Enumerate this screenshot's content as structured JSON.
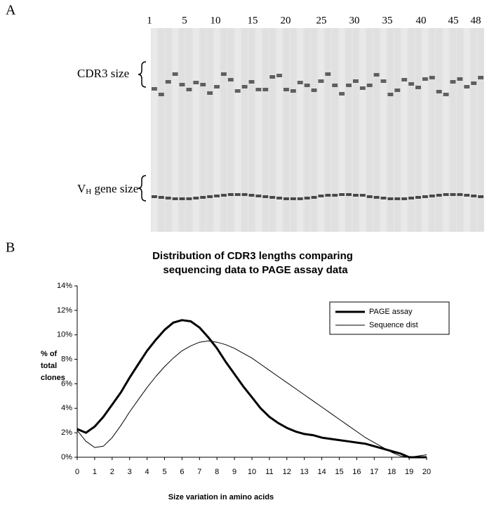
{
  "panel_a": {
    "label": "A",
    "lane_labels": [
      "1",
      "5",
      "10",
      "15",
      "20",
      "25",
      "30",
      "35",
      "40",
      "45",
      "48"
    ],
    "cdr3_label": "CDR3 size",
    "vh_label": {
      "main": "V",
      "subscript": "H",
      "rest": " gene size"
    }
  },
  "chart_data": {
    "type": "line",
    "panel_label": "B",
    "title": [
      "Distribution of CDR3 lengths comparing",
      "sequencing data to PAGE assay data"
    ],
    "x_label": "Size variation in amino acids",
    "y_label": [
      "% of",
      "total",
      "clones"
    ],
    "x": [
      0,
      0.5,
      1,
      1.5,
      2,
      2.5,
      3,
      3.5,
      4,
      4.5,
      5,
      5.5,
      6,
      6.5,
      7,
      7.5,
      8,
      8.5,
      9,
      9.5,
      10,
      10.5,
      11,
      11.5,
      12,
      12.5,
      13,
      13.5,
      14,
      14.5,
      15,
      15.5,
      16,
      16.5,
      17,
      17.5,
      18,
      18.5,
      19,
      19.5,
      20
    ],
    "series": [
      {
        "name": "PAGE assay",
        "color": "#000000",
        "line_width": 3,
        "values": [
          2.3,
          2.0,
          2.5,
          3.3,
          4.3,
          5.3,
          6.5,
          7.6,
          8.7,
          9.6,
          10.4,
          11.0,
          11.2,
          11.1,
          10.6,
          9.8,
          8.9,
          7.8,
          6.8,
          5.8,
          4.9,
          4.0,
          3.3,
          2.8,
          2.4,
          2.1,
          1.9,
          1.8,
          1.6,
          1.5,
          1.4,
          1.3,
          1.2,
          1.1,
          0.9,
          0.7,
          0.5,
          0.3,
          0,
          0,
          0
        ]
      },
      {
        "name": "Sequence dist",
        "color": "#000000",
        "line_width": 1,
        "values": [
          2.2,
          1.3,
          0.8,
          0.9,
          1.6,
          2.6,
          3.7,
          4.7,
          5.7,
          6.6,
          7.4,
          8.1,
          8.7,
          9.1,
          9.4,
          9.5,
          9.4,
          9.2,
          8.9,
          8.5,
          8.1,
          7.6,
          7.1,
          6.6,
          6.1,
          5.6,
          5.1,
          4.6,
          4.1,
          3.6,
          3.1,
          2.6,
          2.1,
          1.6,
          1.2,
          0.8,
          0.4,
          0.1,
          0,
          0.1,
          0.2
        ]
      }
    ],
    "xlim": [
      0,
      20
    ],
    "xticks": [
      0,
      1,
      2,
      3,
      4,
      5,
      6,
      7,
      8,
      9,
      10,
      11,
      12,
      13,
      14,
      15,
      16,
      17,
      18,
      19,
      20
    ],
    "ylim": [
      0,
      14
    ],
    "yticks": [
      {
        "value": 0,
        "label": "0%"
      },
      {
        "value": 2,
        "label": "2%"
      },
      {
        "value": 4,
        "label": "4%"
      },
      {
        "value": 6,
        "label": "6%"
      },
      {
        "value": 8,
        "label": "8%"
      },
      {
        "value": 10,
        "label": "10%"
      },
      {
        "value": 12,
        "label": "12%"
      },
      {
        "value": 14,
        "label": "14%"
      }
    ],
    "grid": false,
    "legend": "upper right"
  }
}
